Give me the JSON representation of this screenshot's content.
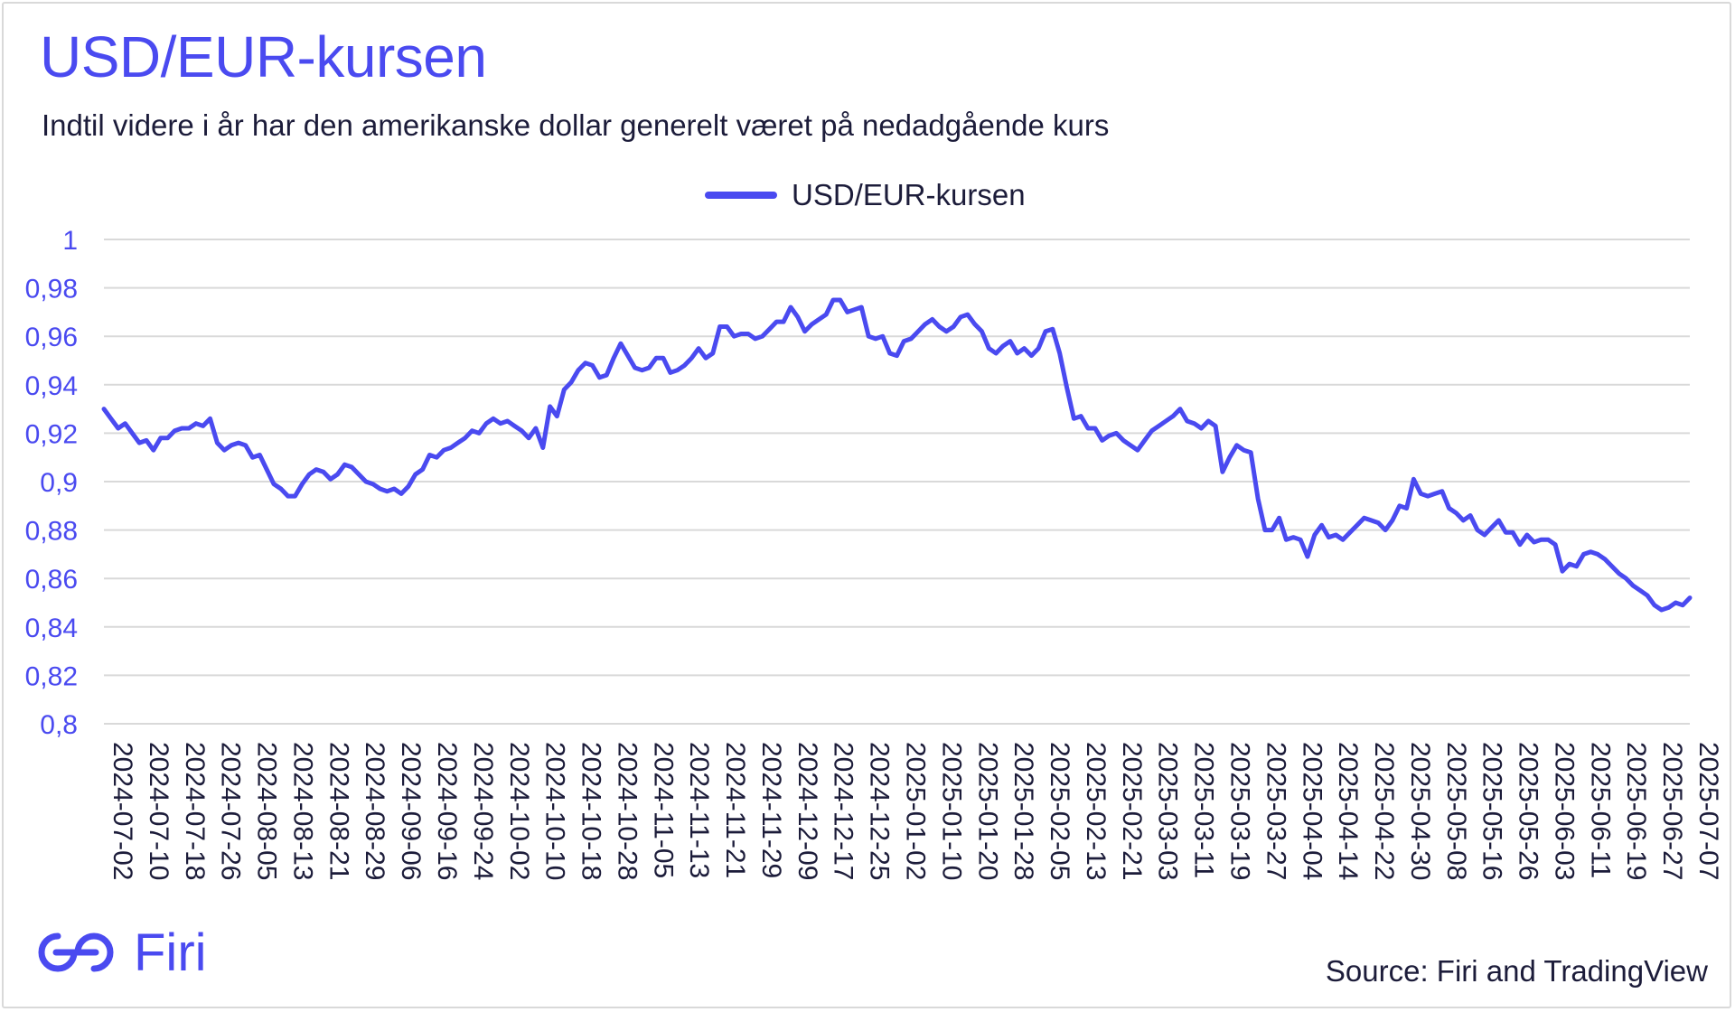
{
  "title": "USD/EUR-kursen",
  "subtitle": "Indtil videre i år har den amerikanske dollar generelt været på nedadgående kurs",
  "legend_label": "USD/EUR-kursen",
  "source": "Source: Firi and TradingView",
  "brand": {
    "name": "Firi",
    "logo_icon": "firi-logo-icon"
  },
  "colors": {
    "accent": "#4a4af0",
    "grid": "#d9d9d9",
    "text": "#1c1c3a"
  },
  "chart_data": {
    "type": "line",
    "title": "USD/EUR-kursen",
    "xlabel": "",
    "ylabel": "",
    "ylim": [
      0.8,
      1.0
    ],
    "ystep": 0.02,
    "y_tick_labels": [
      "0,8",
      "0,82",
      "0,84",
      "0,86",
      "0,88",
      "0,9",
      "0,92",
      "0,94",
      "0,96",
      "0,98",
      "1"
    ],
    "x_tick_labels": [
      "2024-07-02",
      "2024-07-10",
      "2024-07-18",
      "2024-07-26",
      "2024-08-05",
      "2024-08-13",
      "2024-08-21",
      "2024-08-29",
      "2024-09-06",
      "2024-09-16",
      "2024-09-24",
      "2024-10-02",
      "2024-10-10",
      "2024-10-18",
      "2024-10-28",
      "2024-11-05",
      "2024-11-13",
      "2024-11-21",
      "2024-11-29",
      "2024-12-09",
      "2024-12-17",
      "2024-12-25",
      "2025-01-02",
      "2025-01-10",
      "2025-01-20",
      "2025-01-28",
      "2025-02-05",
      "2025-02-13",
      "2025-02-21",
      "2025-03-03",
      "2025-03-11",
      "2025-03-19",
      "2025-03-27",
      "2025-04-04",
      "2025-04-14",
      "2025-04-22",
      "2025-04-30",
      "2025-05-08",
      "2025-05-16",
      "2025-05-26",
      "2025-06-03",
      "2025-06-11",
      "2025-06-19",
      "2025-06-27",
      "2025-07-07"
    ],
    "grid": true,
    "legend": "top-center",
    "series": [
      {
        "name": "USD/EUR-kursen",
        "color": "#4a4af0",
        "values": [
          0.93,
          0.926,
          0.922,
          0.924,
          0.92,
          0.916,
          0.917,
          0.913,
          0.918,
          0.918,
          0.921,
          0.922,
          0.922,
          0.924,
          0.923,
          0.926,
          0.916,
          0.913,
          0.915,
          0.916,
          0.915,
          0.91,
          0.911,
          0.905,
          0.899,
          0.897,
          0.894,
          0.894,
          0.899,
          0.903,
          0.905,
          0.904,
          0.901,
          0.903,
          0.907,
          0.906,
          0.903,
          0.9,
          0.899,
          0.897,
          0.896,
          0.897,
          0.895,
          0.898,
          0.903,
          0.905,
          0.911,
          0.91,
          0.913,
          0.914,
          0.916,
          0.918,
          0.921,
          0.92,
          0.924,
          0.926,
          0.924,
          0.925,
          0.923,
          0.921,
          0.918,
          0.922,
          0.914,
          0.931,
          0.927,
          0.938,
          0.941,
          0.946,
          0.949,
          0.948,
          0.943,
          0.944,
          0.951,
          0.957,
          0.952,
          0.947,
          0.946,
          0.947,
          0.951,
          0.951,
          0.945,
          0.946,
          0.948,
          0.951,
          0.955,
          0.951,
          0.953,
          0.964,
          0.964,
          0.96,
          0.961,
          0.961,
          0.959,
          0.96,
          0.963,
          0.966,
          0.966,
          0.972,
          0.968,
          0.962,
          0.965,
          0.967,
          0.969,
          0.975,
          0.975,
          0.97,
          0.971,
          0.972,
          0.96,
          0.959,
          0.96,
          0.953,
          0.952,
          0.958,
          0.959,
          0.962,
          0.965,
          0.967,
          0.964,
          0.962,
          0.964,
          0.968,
          0.969,
          0.965,
          0.962,
          0.955,
          0.953,
          0.956,
          0.958,
          0.953,
          0.955,
          0.952,
          0.955,
          0.962,
          0.963,
          0.953,
          0.939,
          0.926,
          0.927,
          0.922,
          0.922,
          0.917,
          0.919,
          0.92,
          0.917,
          0.915,
          0.913,
          0.917,
          0.921,
          0.923,
          0.925,
          0.927,
          0.93,
          0.925,
          0.924,
          0.922,
          0.925,
          0.923,
          0.904,
          0.91,
          0.915,
          0.913,
          0.912,
          0.893,
          0.88,
          0.88,
          0.885,
          0.876,
          0.877,
          0.876,
          0.869,
          0.878,
          0.882,
          0.877,
          0.878,
          0.876,
          0.879,
          0.882,
          0.885,
          0.884,
          0.883,
          0.88,
          0.884,
          0.89,
          0.889,
          0.901,
          0.895,
          0.894,
          0.895,
          0.896,
          0.889,
          0.887,
          0.884,
          0.886,
          0.88,
          0.878,
          0.881,
          0.884,
          0.879,
          0.879,
          0.874,
          0.878,
          0.875,
          0.876,
          0.876,
          0.874,
          0.863,
          0.866,
          0.865,
          0.87,
          0.871,
          0.87,
          0.868,
          0.865,
          0.862,
          0.86,
          0.857,
          0.855,
          0.853,
          0.849,
          0.847,
          0.848,
          0.85,
          0.849,
          0.852
        ]
      }
    ]
  }
}
